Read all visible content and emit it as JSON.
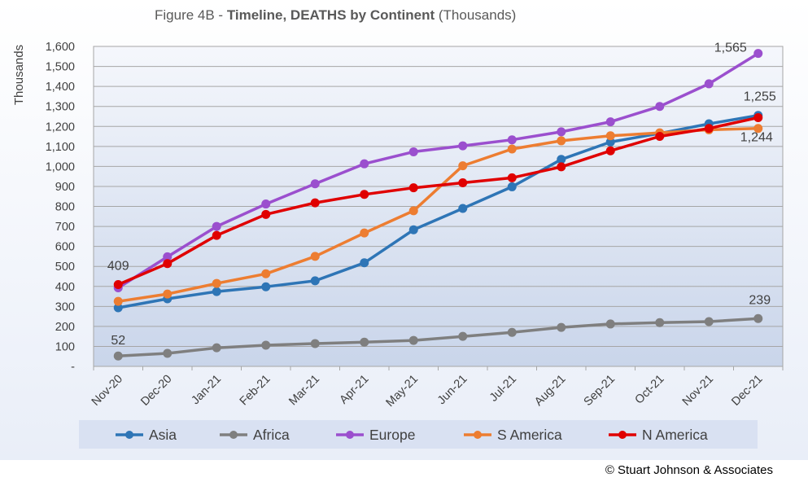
{
  "chart_data": {
    "type": "line",
    "title_prefix": "Figure 4B - ",
    "title_bold": "Timeline, DEATHS by Continent",
    "title_suffix": " (Thousands)",
    "ylabel": "Thousands",
    "xlabel": "",
    "ylim": [
      0,
      1600
    ],
    "yticks": [
      "-",
      "100",
      "200",
      "300",
      "400",
      "500",
      "600",
      "700",
      "800",
      "900",
      "1,000",
      "1,100",
      "1,200",
      "1,300",
      "1,400",
      "1,500",
      "1,600"
    ],
    "grid": true,
    "legend_position": "bottom",
    "categories": [
      "Nov-20",
      "Dec-20",
      "Jan-21",
      "Feb-21",
      "Mar-21",
      "Apr-21",
      "May-21",
      "Jun-21",
      "Jul-21",
      "Aug-21",
      "Sep-21",
      "Oct-21",
      "Nov-21",
      "Dec-21"
    ],
    "series": [
      {
        "name": "Asia",
        "color": "#2e75b6",
        "values": [
          293,
          338,
          374,
          398,
          428,
          518,
          683,
          790,
          898,
          1035,
          1122,
          1165,
          1213,
          1255
        ]
      },
      {
        "name": "Africa",
        "color": "#7f7f7f",
        "values": [
          52,
          65,
          93,
          106,
          114,
          121,
          130,
          150,
          170,
          195,
          212,
          219,
          224,
          239
        ]
      },
      {
        "name": "Europe",
        "color": "#9b4fce",
        "values": [
          393,
          548,
          700,
          812,
          913,
          1013,
          1073,
          1103,
          1133,
          1173,
          1223,
          1300,
          1413,
          1565
        ]
      },
      {
        "name": "S America",
        "color": "#ed7d31",
        "values": [
          325,
          362,
          415,
          463,
          550,
          667,
          778,
          1003,
          1087,
          1128,
          1153,
          1168,
          1183,
          1190
        ]
      },
      {
        "name": "N America",
        "color": "#e00000",
        "values": [
          409,
          514,
          655,
          760,
          818,
          860,
          893,
          918,
          943,
          998,
          1078,
          1150,
          1190,
          1244
        ]
      }
    ],
    "data_labels": [
      {
        "series": "N America",
        "index": 0,
        "text": "409"
      },
      {
        "series": "Africa",
        "index": 0,
        "text": "52"
      },
      {
        "series": "Europe",
        "index": 13,
        "text": "1,565"
      },
      {
        "series": "Asia",
        "index": 13,
        "text": "1,255"
      },
      {
        "series": "N America",
        "index": 13,
        "text": "1,244"
      },
      {
        "series": "Africa",
        "index": 13,
        "text": "239"
      }
    ]
  },
  "copyright": "© Stuart Johnson & Associates"
}
